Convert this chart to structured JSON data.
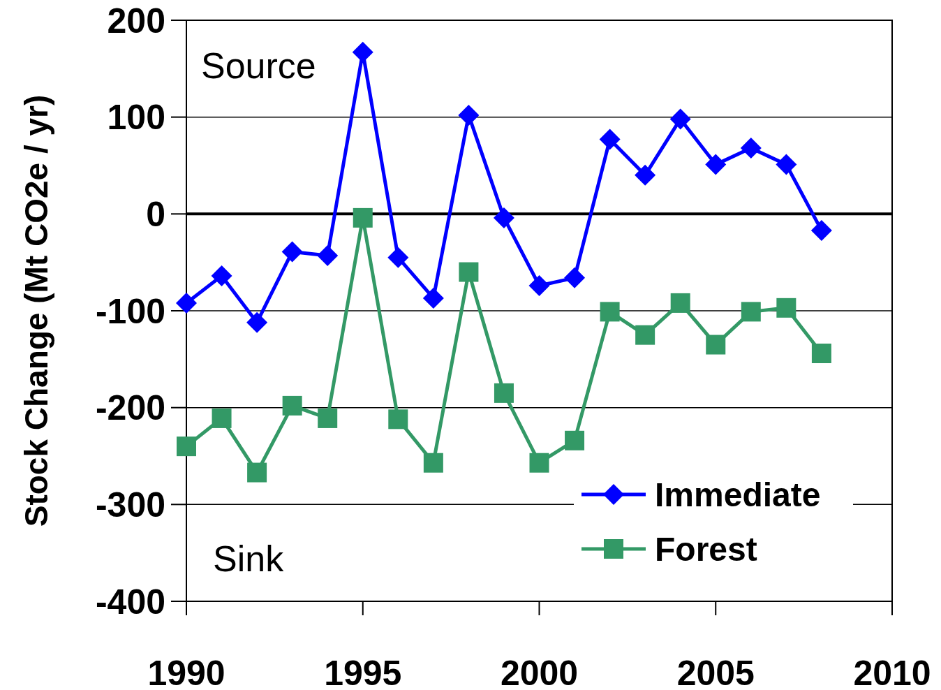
{
  "chart_data": {
    "type": "line",
    "ylabel": "Stock Change (Mt CO2e / yr)",
    "x": [
      1990,
      1991,
      1992,
      1993,
      1994,
      1995,
      1996,
      1997,
      1998,
      1999,
      2000,
      2001,
      2002,
      2003,
      2004,
      2005,
      2006,
      2007,
      2008
    ],
    "xlim": [
      1990,
      2010
    ],
    "xticks": [
      1990,
      1995,
      2000,
      2005,
      2010
    ],
    "ylim": [
      -400,
      200
    ],
    "yticks": [
      -400,
      -300,
      -200,
      -100,
      0,
      100,
      200
    ],
    "grid": "y",
    "legend": "bottom right",
    "series": [
      {
        "name": "Immediate",
        "color": "#0000ff",
        "marker": "diamond",
        "values": [
          -92,
          -64,
          -112,
          -39,
          -43,
          167,
          -45,
          -87,
          102,
          -4,
          -74,
          -66,
          77,
          40,
          98,
          51,
          68,
          51,
          -17
        ]
      },
      {
        "name": "Forest",
        "color": "#339966",
        "marker": "square",
        "values": [
          -240,
          -211,
          -267,
          -198,
          -211,
          -4,
          -212,
          -257,
          -60,
          -185,
          -257,
          -234,
          -101,
          -125,
          -92,
          -135,
          -101,
          -97,
          -144
        ]
      }
    ],
    "ref_lines": [
      {
        "axis": "y",
        "value": 0,
        "color": "#000000"
      }
    ],
    "annotations": [
      "Source",
      "Sink"
    ]
  }
}
